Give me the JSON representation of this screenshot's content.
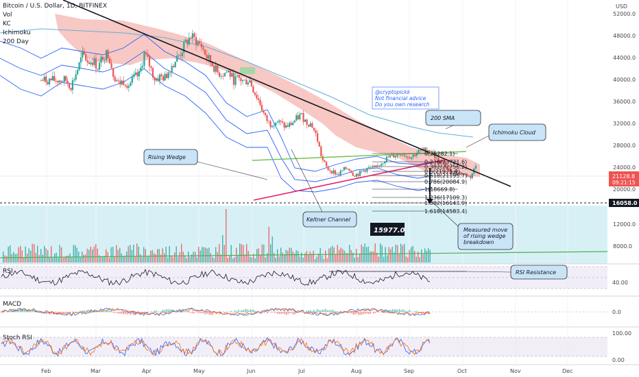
{
  "chart_data": {
    "type": "candlestick",
    "title": "Bitcoin / U.S. Dollar, 1D, BITFINEX",
    "indicators_legend": [
      "Vol",
      "KC",
      "Ichimoku",
      "200 Day"
    ],
    "months": [
      "Feb",
      "Mar",
      "Apr",
      "May",
      "Jun",
      "Jul",
      "Aug",
      "Sep",
      "Oct",
      "Nov",
      "Dec"
    ],
    "y_unit": "USD",
    "price_ticks": [
      "52000.0",
      "48000.0",
      "44000.0",
      "40000.0",
      "36000.0",
      "32000.0",
      "28000.0",
      "24000.0",
      "20000.0",
      "12000.0",
      "8000.0"
    ],
    "current_price": "21128.8",
    "countdown": "09:21:15",
    "support_level": "16058.0",
    "target_price": "15977.0",
    "author_note": [
      "@cryptopickk",
      "Not financial advice",
      "Do you own research"
    ],
    "annotations": {
      "sma": "200 SMA",
      "cloud": "Ichimoku Cloud",
      "wedge": "Rising Wedge",
      "keltner": "Keltner Channel",
      "measured": [
        "Measured move",
        "of rising wedge",
        "breakdown"
      ],
      "rsi_res": "RSI Resistance"
    },
    "fib_levels": [
      {
        "ratio": "0",
        "price": "25282.1",
        "label": "0(25282.1)"
      },
      {
        "ratio": "0.236",
        "price": "23721.6",
        "label": "0.236(23721.6)"
      },
      {
        "ratio": "0.382",
        "price": "22756.2",
        "label": "0.382(22756.2)"
      },
      {
        "ratio": "0.5",
        "price": "21975.9",
        "label": "0.5(21975.9)"
      },
      {
        "ratio": "0.618",
        "price": "21195.7",
        "label": "0.618(21195.7)"
      },
      {
        "ratio": "0.786",
        "price": "20084.9",
        "label": "0.786(20084.9)"
      },
      {
        "ratio": "1",
        "price": "18669.8",
        "label": "1(18669.8)"
      },
      {
        "ratio": "1.236",
        "price": "17109.3",
        "label": "1.236(17109.3)"
      },
      {
        "ratio": "1.382",
        "price": "16143.9",
        "label": "1.382(16143.9)"
      },
      {
        "ratio": "1.618",
        "price": "14583.4",
        "label": "1.618(14583.4)"
      }
    ],
    "rsi": {
      "label": "RSI",
      "ticks": [
        "40.00"
      ]
    },
    "macd": {
      "label": "MACD",
      "ticks": [
        "0.0"
      ]
    },
    "stoch": {
      "label": "Stoch RSI",
      "ticks": [
        "100.00",
        "0.00"
      ]
    },
    "colors": {
      "up": "#26a69a",
      "down": "#ef5350",
      "cloud": "#f4b6b0",
      "kc": "#2962ff",
      "sma": "#5fb0d8",
      "trend": "#131722",
      "wedge_up": "#6cc24a",
      "wedge_low": "#e91e63",
      "price_tag": "#ef5350",
      "level_tag": "#131722",
      "volume_bg": "#d7f0f6"
    },
    "price_series": [
      {
        "m": 0.5,
        "p": 38500
      },
      {
        "m": 0.6,
        "p": 37200
      },
      {
        "m": 0.75,
        "p": 41000
      },
      {
        "m": 0.85,
        "p": 43800
      },
      {
        "m": 0.95,
        "p": 42200
      },
      {
        "m": 1.05,
        "p": 42500
      },
      {
        "m": 1.15,
        "p": 41000
      },
      {
        "m": 1.25,
        "p": 43600
      },
      {
        "m": 1.35,
        "p": 44000
      },
      {
        "m": 1.45,
        "p": 39500
      },
      {
        "m": 1.55,
        "p": 37800
      },
      {
        "m": 1.65,
        "p": 38400
      },
      {
        "m": 1.75,
        "p": 37500
      },
      {
        "m": 1.85,
        "p": 39000
      },
      {
        "m": 1.95,
        "p": 39500
      },
      {
        "m": 2.05,
        "p": 44000
      },
      {
        "m": 2.15,
        "p": 41500
      },
      {
        "m": 2.25,
        "p": 38700
      },
      {
        "m": 2.35,
        "p": 39200
      },
      {
        "m": 2.45,
        "p": 39000
      },
      {
        "m": 2.55,
        "p": 41000
      },
      {
        "m": 2.65,
        "p": 42500
      },
      {
        "m": 2.75,
        "p": 44000
      },
      {
        "m": 2.85,
        "p": 46000
      },
      {
        "m": 2.95,
        "p": 47300
      },
      {
        "m": 3.05,
        "p": 46500
      },
      {
        "m": 3.15,
        "p": 45500
      },
      {
        "m": 3.25,
        "p": 43200
      },
      {
        "m": 3.35,
        "p": 41800
      },
      {
        "m": 3.45,
        "p": 40000
      },
      {
        "m": 3.55,
        "p": 39800
      },
      {
        "m": 3.65,
        "p": 40300
      },
      {
        "m": 3.75,
        "p": 38500
      },
      {
        "m": 3.85,
        "p": 38800
      },
      {
        "m": 3.95,
        "p": 38200
      },
      {
        "m": 4.05,
        "p": 38600
      },
      {
        "m": 4.15,
        "p": 36000
      },
      {
        "m": 4.25,
        "p": 34000
      },
      {
        "m": 4.35,
        "p": 31000
      },
      {
        "m": 4.45,
        "p": 29500
      },
      {
        "m": 4.55,
        "p": 30200
      },
      {
        "m": 4.65,
        "p": 29800
      },
      {
        "m": 4.75,
        "p": 29000
      },
      {
        "m": 4.85,
        "p": 29500
      },
      {
        "m": 4.95,
        "p": 30500
      },
      {
        "m": 5.05,
        "p": 31500
      },
      {
        "m": 5.15,
        "p": 30000
      },
      {
        "m": 5.25,
        "p": 29600
      },
      {
        "m": 5.35,
        "p": 27000
      },
      {
        "m": 5.45,
        "p": 22500
      },
      {
        "m": 5.55,
        "p": 20500
      },
      {
        "m": 5.65,
        "p": 20000
      },
      {
        "m": 5.75,
        "p": 19300
      },
      {
        "m": 5.85,
        "p": 20300
      },
      {
        "m": 5.95,
        "p": 20700
      },
      {
        "m": 6.05,
        "p": 19300
      },
      {
        "m": 6.15,
        "p": 19500
      },
      {
        "m": 6.25,
        "p": 20300
      },
      {
        "m": 6.35,
        "p": 20700
      },
      {
        "m": 6.45,
        "p": 20500
      },
      {
        "m": 6.55,
        "p": 21500
      },
      {
        "m": 6.65,
        "p": 22500
      },
      {
        "m": 6.75,
        "p": 23000
      },
      {
        "m": 6.85,
        "p": 23300
      },
      {
        "m": 6.95,
        "p": 23700
      },
      {
        "m": 7.05,
        "p": 23100
      },
      {
        "m": 7.15,
        "p": 23000
      },
      {
        "m": 7.25,
        "p": 23900
      },
      {
        "m": 7.35,
        "p": 24200
      },
      {
        "m": 7.45,
        "p": 24500
      },
      {
        "m": 7.55,
        "p": 23600
      },
      {
        "m": 7.65,
        "p": 21800
      },
      {
        "m": 7.75,
        "p": 21500
      },
      {
        "m": 7.85,
        "p": 20000
      },
      {
        "m": 7.95,
        "p": 19800
      },
      {
        "m": 8.05,
        "p": 19700
      },
      {
        "m": 8.15,
        "p": 19300
      },
      {
        "m": 8.25,
        "p": 18900
      },
      {
        "m": 8.35,
        "p": 21128
      }
    ]
  }
}
